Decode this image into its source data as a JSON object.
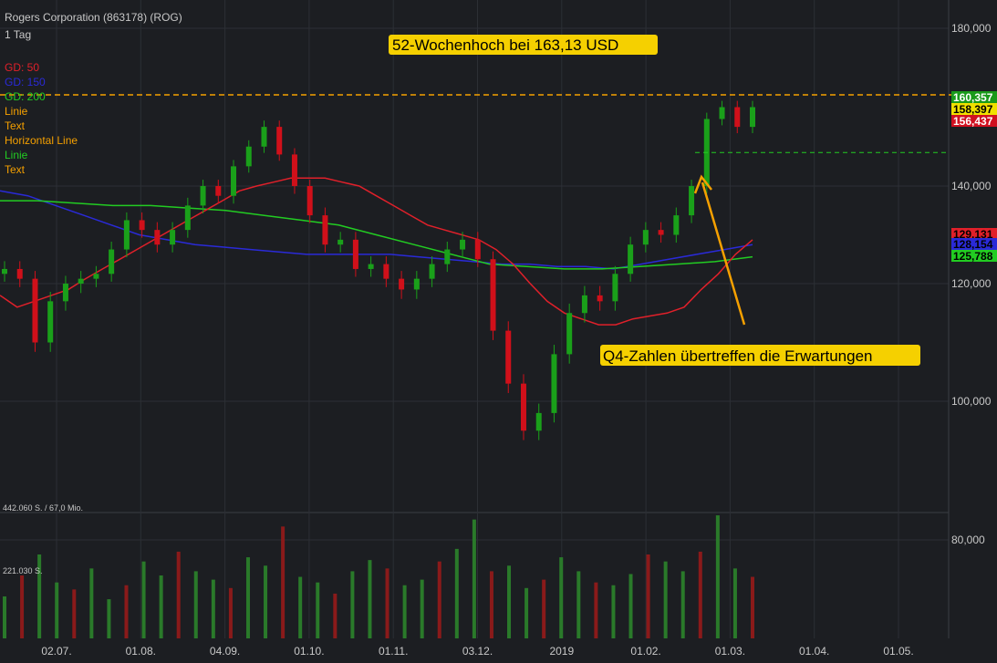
{
  "header": {
    "title": "Rogers Corporation (863178) (ROG)",
    "interval": "1 Tag"
  },
  "legend": [
    {
      "label": "GD: 50",
      "color": "#e0202a"
    },
    {
      "label": "GD: 150",
      "color": "#2a2ad8"
    },
    {
      "label": "GD: 200",
      "color": "#22cc22"
    },
    {
      "label": "Linie",
      "color": "#f5a000"
    },
    {
      "label": "Text",
      "color": "#f5a000"
    },
    {
      "label": "Horizontal Line",
      "color": "#f5a000"
    },
    {
      "label": "Linie",
      "color": "#22cc22"
    },
    {
      "label": "Text",
      "color": "#f5a000"
    }
  ],
  "annotations": {
    "high": "52-Wochenhoch bei 163,13 USD",
    "q4": "Q4-Zahlen übertreffen die Erwartungen"
  },
  "volume_labels": {
    "max": "442.060 S. / 67,0 Mio.",
    "mid": "221.030 S."
  },
  "price_tags": [
    {
      "label": "160,357",
      "value": 160.357,
      "bg": "#1a9a1a",
      "fg": "#ffffff"
    },
    {
      "label": "158,397",
      "value": 158.397,
      "bg": "#f0e000",
      "fg": "#000000"
    },
    {
      "label": "156,437",
      "value": 156.437,
      "bg": "#d01020",
      "fg": "#ffffff"
    },
    {
      "label": "129,131",
      "value": 129.131,
      "bg": "#e0202a",
      "fg": "#000000"
    },
    {
      "label": "128,154",
      "value": 128.154,
      "bg": "#2a2ad8",
      "fg": "#000000"
    },
    {
      "label": "125,788",
      "value": 125.788,
      "bg": "#22cc22",
      "fg": "#000000"
    }
  ],
  "colors": {
    "up": "#1aa01a",
    "down": "#d0101a",
    "grid": "#2c2f35",
    "axis_text": "#c8c8c8",
    "orange": "#f5a000",
    "yellow_box": "#f5d000"
  },
  "chart_data": {
    "type": "candlestick",
    "y_ticks": [
      {
        "label": "180,000",
        "value": 180
      },
      {
        "label": "140,000",
        "value": 140
      },
      {
        "label": "120,000",
        "value": 120
      },
      {
        "label": "100,000",
        "value": 100
      },
      {
        "label": "80,000",
        "value": 80
      }
    ],
    "x_ticks": [
      "02.07.",
      "01.08.",
      "04.09.",
      "01.10.",
      "01.11.",
      "03.12.",
      "2019",
      "01.02.",
      "01.03.",
      "01.04.",
      "01.05."
    ],
    "ylim": [
      82,
      184
    ],
    "high_line": 163.13,
    "support_line": 148.5,
    "close_series": [
      123,
      121,
      110,
      117,
      120,
      121,
      122,
      127,
      133,
      131,
      128,
      131,
      136,
      140,
      138,
      145,
      150,
      155,
      148,
      140,
      134,
      128,
      129,
      123,
      124,
      121,
      119,
      121,
      124,
      127,
      129,
      125,
      112,
      103,
      95,
      98,
      108,
      115,
      118,
      117,
      122,
      128,
      131,
      130,
      134,
      140,
      157,
      160,
      155,
      160
    ],
    "ma50": [
      118,
      116,
      117,
      118,
      119,
      121,
      123,
      125,
      127,
      129,
      131,
      133,
      135,
      137,
      139,
      140,
      141,
      142,
      142,
      142,
      141,
      140,
      138,
      136,
      134,
      132,
      131,
      130,
      129,
      127,
      124,
      120,
      117,
      115,
      114,
      113,
      113,
      114,
      114.5,
      115,
      116,
      119,
      122,
      126,
      129
    ],
    "ma150": [
      139,
      138,
      136,
      134,
      132,
      130,
      129,
      128,
      127.5,
      127,
      126.5,
      126,
      126,
      126,
      126,
      125.5,
      125,
      124.5,
      124,
      124,
      123.5,
      123.5,
      123,
      124,
      125,
      126,
      127,
      128
    ],
    "ma200": [
      137,
      137,
      136.5,
      136,
      136,
      135.5,
      135,
      134,
      133,
      132,
      130,
      128,
      126,
      124,
      123.5,
      123,
      123,
      123.5,
      124,
      124.5,
      125.5
    ],
    "volume": [
      30,
      45,
      60,
      40,
      35,
      50,
      28,
      38,
      55,
      45,
      62,
      48,
      42,
      36,
      58,
      52,
      80,
      44,
      40,
      32,
      48,
      56,
      50,
      38,
      42,
      55,
      64,
      85,
      48,
      52,
      36,
      42,
      58,
      48,
      40,
      38,
      46,
      60,
      55,
      48,
      62,
      88,
      50,
      44
    ]
  }
}
